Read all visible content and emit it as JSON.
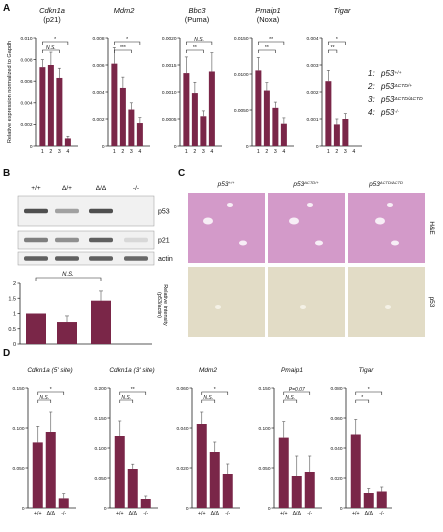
{
  "figure": {
    "panel_labels": [
      "A",
      "B",
      "C",
      "D"
    ],
    "bar_color": "#7a2648",
    "bg_color": "#ffffff"
  },
  "panel_a": {
    "ylabel": "Relative expression normalized to Gapdh",
    "legend": [
      {
        "num": "1:",
        "base": "p53",
        "sup": "+/+"
      },
      {
        "num": "2:",
        "base": "p53",
        "sup": "ΔCTD/+"
      },
      {
        "num": "3:",
        "base": "p53",
        "sup": "ΔCTD/ΔCTD"
      },
      {
        "num": "4:",
        "base": "p53",
        "sup": "-/-"
      }
    ]
  },
  "panel_b": {
    "genotypes": [
      "+/+",
      "Δ/+",
      "Δ/Δ",
      "-/-"
    ],
    "blot_labels": [
      "p53",
      "p21",
      "actin"
    ],
    "quant": {
      "ylabel": "Relative intensity (p53/actin)",
      "yticks": [
        "0",
        "0.5",
        "1",
        "1.5",
        "2"
      ],
      "ylim": [
        0,
        2
      ],
      "values": [
        1.0,
        0.72,
        1.42,
        0
      ],
      "errors": [
        0,
        0.2,
        0.32,
        0
      ],
      "sig": "N.S."
    }
  },
  "panel_c": {
    "columns": [
      {
        "base": "p53",
        "sup": "+/+"
      },
      {
        "base": "p53",
        "sup": "ΔCTD/+"
      },
      {
        "base": "p53",
        "sup": "ΔCTD/ΔCTD"
      }
    ],
    "row_labels": [
      "H&E",
      "p53"
    ]
  },
  "chart_data": [
    {
      "type": "bar",
      "panel": "A",
      "title": "Cdkn1a",
      "subtitle": "(p21)",
      "categories": [
        "1",
        "2",
        "3",
        "4"
      ],
      "values": [
        0.0073,
        0.0075,
        0.0063,
        0.0007
      ],
      "errors": [
        0.0007,
        0.0012,
        0.0009,
        0.0002
      ],
      "ylim": [
        0,
        0.01
      ],
      "yticks": [
        "0.010",
        "0.008",
        "0.006",
        "0.004",
        "0.002",
        "0"
      ],
      "sig": [
        {
          "from": 0,
          "to": 2,
          "label": "N.S."
        },
        {
          "from": 0,
          "to": 3,
          "label": "*"
        }
      ]
    },
    {
      "type": "bar",
      "panel": "A",
      "title": "Mdm2",
      "subtitle": "",
      "categories": [
        "1",
        "2",
        "3",
        "4"
      ],
      "values": [
        0.0061,
        0.0043,
        0.0027,
        0.0017
      ],
      "errors": [
        0.0012,
        0.0008,
        0.0005,
        0.0004
      ],
      "ylim": [
        0,
        0.008
      ],
      "yticks": [
        "0.008",
        "0.006",
        "0.004",
        "0.002",
        "0"
      ],
      "sig": [
        {
          "from": 0,
          "to": 2,
          "label": "***"
        },
        {
          "from": 0,
          "to": 3,
          "label": "*"
        }
      ]
    },
    {
      "type": "bar",
      "panel": "A",
      "title": "Bbc3",
      "subtitle": "(Puma)",
      "categories": [
        "1",
        "2",
        "3",
        "4"
      ],
      "values": [
        0.00135,
        0.00098,
        0.00055,
        0.00138
      ],
      "errors": [
        0.0003,
        0.0002,
        0.0001,
        0.00035
      ],
      "ylim": [
        0,
        0.002
      ],
      "yticks": [
        "0.0020",
        "0.0015",
        "0.0010",
        "0.0005",
        "0"
      ],
      "sig": [
        {
          "from": 0,
          "to": 2,
          "label": "**"
        },
        {
          "from": 0,
          "to": 3,
          "label": "N.S."
        }
      ]
    },
    {
      "type": "bar",
      "panel": "A",
      "title": "Pmaip1",
      "subtitle": "(Noxa)",
      "categories": [
        "1",
        "2",
        "3",
        "4"
      ],
      "values": [
        0.0105,
        0.0077,
        0.0053,
        0.0031
      ],
      "errors": [
        0.0018,
        0.0011,
        0.0008,
        0.0008
      ],
      "ylim": [
        0,
        0.015
      ],
      "yticks": [
        "0.0150",
        "0.0100",
        "0.0050",
        "0"
      ],
      "sig": [
        {
          "from": 0,
          "to": 2,
          "label": "**"
        },
        {
          "from": 0,
          "to": 3,
          "label": "**"
        }
      ]
    },
    {
      "type": "bar",
      "panel": "A",
      "title": "Tigar",
      "subtitle": "",
      "categories": [
        "1",
        "2",
        "3",
        "4"
      ],
      "values": [
        0.0024,
        0.0008,
        0.001,
        0.0
      ],
      "errors": [
        0.0004,
        0.0002,
        0.0002,
        0.0
      ],
      "ylim": [
        0,
        0.004
      ],
      "yticks": [
        "0.004",
        "0.003",
        "0.002",
        "0.001",
        "0"
      ],
      "sig": [
        {
          "from": 0,
          "to": 1,
          "label": "**"
        },
        {
          "from": 0,
          "to": 2,
          "label": "*"
        }
      ]
    },
    {
      "type": "bar",
      "panel": "D",
      "title": "Cdkn1a (5' site)",
      "subtitle": "",
      "categories": [
        "+/+",
        "Δ/Δ",
        "-/-"
      ],
      "values": [
        0.082,
        0.095,
        0.012
      ],
      "errors": [
        0.02,
        0.025,
        0.006
      ],
      "ylim": [
        0,
        0.15
      ],
      "yticks": [
        "0.150",
        "0.100",
        "0.050",
        "0"
      ],
      "sig": [
        {
          "from": 0,
          "to": 1,
          "label": "N.S."
        },
        {
          "from": 0,
          "to": 2,
          "label": "*"
        }
      ]
    },
    {
      "type": "bar",
      "panel": "D",
      "title": "Cdkn1a (3' site)",
      "subtitle": "",
      "categories": [
        "+/+",
        "Δ/Δ",
        "-/-"
      ],
      "values": [
        0.12,
        0.065,
        0.015
      ],
      "errors": [
        0.025,
        0.008,
        0.005
      ],
      "ylim": [
        0,
        0.2
      ],
      "yticks": [
        "0.200",
        "0.150",
        "0.100",
        "0.050",
        "0"
      ],
      "sig": [
        {
          "from": 0,
          "to": 1,
          "label": "N.S."
        },
        {
          "from": 0,
          "to": 2,
          "label": "**"
        }
      ]
    },
    {
      "type": "bar",
      "panel": "D",
      "title": "Mdm2",
      "subtitle": "",
      "categories": [
        "+/+",
        "Δ/Δ",
        "-/-"
      ],
      "values": [
        0.042,
        0.028,
        0.017
      ],
      "errors": [
        0.006,
        0.005,
        0.005
      ],
      "ylim": [
        0,
        0.06
      ],
      "yticks": [
        "0.060",
        "0.040",
        "0.020",
        "0"
      ],
      "sig": [
        {
          "from": 0,
          "to": 1,
          "label": "N.S."
        },
        {
          "from": 0,
          "to": 2,
          "label": "*"
        }
      ]
    },
    {
      "type": "bar",
      "panel": "D",
      "title": "Pmaip1",
      "subtitle": "",
      "categories": [
        "+/+",
        "Δ/Δ",
        "-/-"
      ],
      "values": [
        0.088,
        0.04,
        0.045
      ],
      "errors": [
        0.02,
        0.025,
        0.02
      ],
      "ylim": [
        0,
        0.15
      ],
      "yticks": [
        "0.150",
        "0.100",
        "0.050",
        "0"
      ],
      "sig": [
        {
          "from": 0,
          "to": 1,
          "label": "N.S."
        },
        {
          "from": 0,
          "to": 2,
          "label": "P=0.07"
        }
      ]
    },
    {
      "type": "bar",
      "panel": "D",
      "title": "Tigar",
      "subtitle": "",
      "categories": [
        "+/+",
        "Δ/Δ",
        "-/-"
      ],
      "values": [
        0.049,
        0.01,
        0.011
      ],
      "errors": [
        0.01,
        0.003,
        0.003
      ],
      "ylim": [
        0,
        0.08
      ],
      "yticks": [
        "0.080",
        "0.060",
        "0.040",
        "0.020",
        "0"
      ],
      "sig": [
        {
          "from": 0,
          "to": 1,
          "label": "*"
        },
        {
          "from": 0,
          "to": 2,
          "label": "*"
        }
      ]
    }
  ]
}
